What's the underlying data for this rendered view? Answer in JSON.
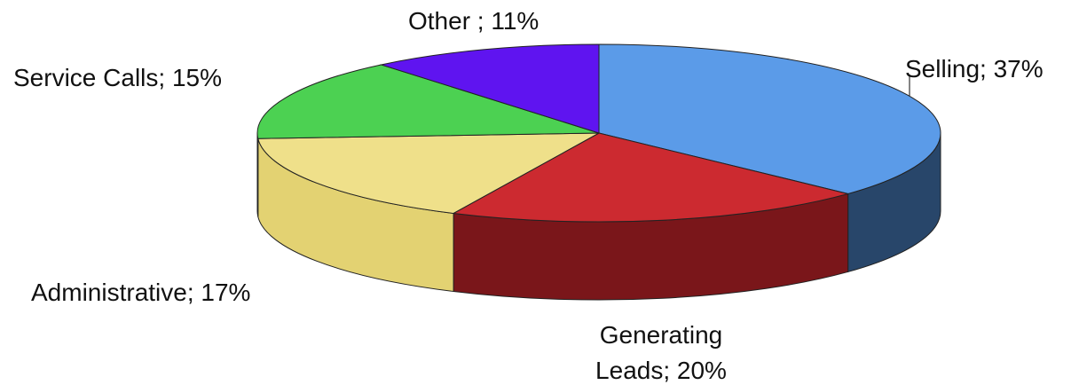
{
  "chart_data": {
    "type": "pie",
    "values": [
      37,
      20,
      17,
      15,
      11
    ],
    "value_labels": [
      "Selling; 37%",
      "Generating Leads; 20%",
      "Administrative; 17%",
      "Service Calls; 15%",
      "Other ; 11%"
    ],
    "colors": [
      "#5b9be8",
      "#cc2a30",
      "#efe08a",
      "#4cd152",
      "#5f14f0"
    ],
    "side_colors": [
      "#28466a",
      "#7a161a",
      "#e3d272",
      "#2f9a35",
      "#3a0a99"
    ]
  }
}
